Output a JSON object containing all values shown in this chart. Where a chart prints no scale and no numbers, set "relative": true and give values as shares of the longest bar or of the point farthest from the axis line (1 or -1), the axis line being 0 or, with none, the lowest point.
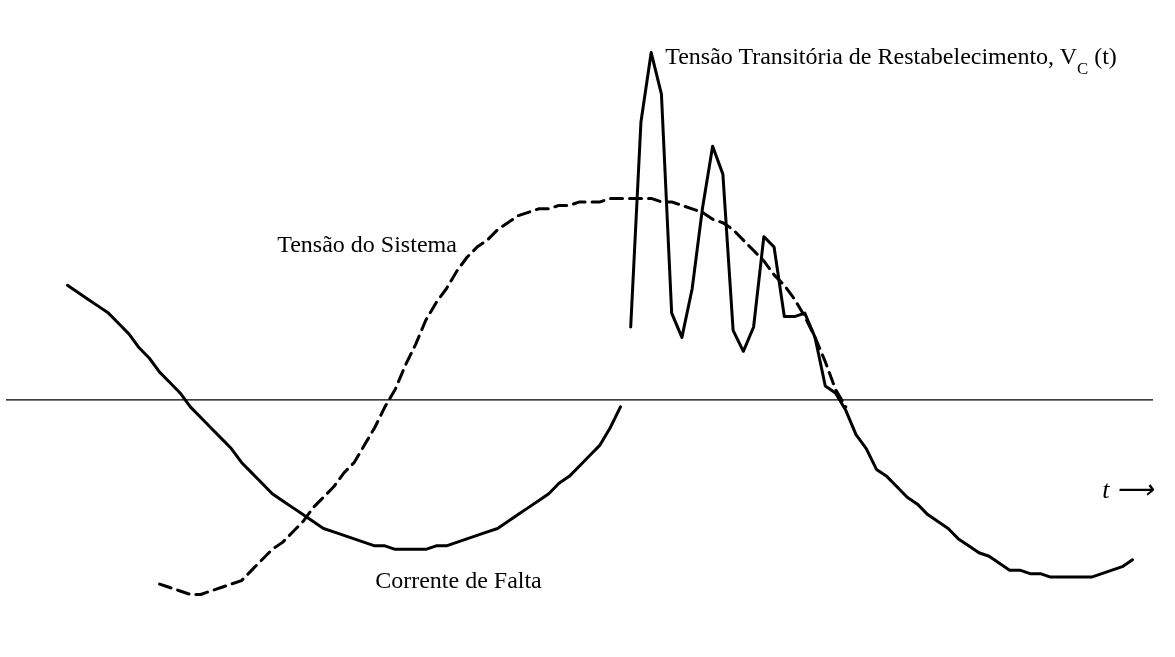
{
  "chart_data": {
    "type": "line",
    "relative": true,
    "xlabel": "t ⟶",
    "grid": false,
    "marker": "none",
    "categories": [
      null,
      null,
      null,
      null,
      null,
      null,
      null,
      null,
      null,
      null,
      null,
      null,
      null,
      null,
      null,
      null,
      null,
      null,
      null,
      null,
      null,
      null,
      null,
      null,
      null,
      null,
      null,
      null,
      null,
      null,
      null,
      null,
      null,
      null,
      null,
      null,
      null,
      null,
      null,
      null,
      null,
      null,
      null,
      null,
      null,
      null,
      null,
      null,
      null,
      null,
      null,
      null,
      null,
      null,
      null,
      null,
      null,
      null,
      null,
      null,
      null,
      null,
      null,
      null,
      null,
      null,
      null,
      null,
      null,
      null,
      null,
      null,
      null,
      null,
      null,
      null,
      null,
      null,
      null,
      null,
      null,
      null,
      null,
      null,
      null,
      null,
      null,
      null,
      null,
      null,
      null,
      null,
      null,
      null,
      null,
      null,
      null,
      null,
      null,
      null,
      null,
      null,
      null,
      null,
      null
    ],
    "series": [
      {
        "name": "Corrente de Falta",
        "color": "#000000",
        "line_style": "solid",
        "values": [
          0.33,
          0.31,
          0.29,
          0.27,
          0.25,
          0.22,
          0.19,
          0.15,
          0.12,
          0.08,
          0.05,
          0.02,
          -0.02,
          -0.05,
          -0.08,
          -0.11,
          -0.14,
          -0.18,
          -0.21,
          -0.24,
          -0.27,
          -0.29,
          -0.31,
          -0.33,
          -0.35,
          -0.37,
          -0.38,
          -0.39,
          -0.4,
          -0.41,
          -0.42,
          -0.42,
          -0.43,
          -0.43,
          -0.43,
          -0.43,
          -0.42,
          -0.42,
          -0.41,
          -0.4,
          -0.39,
          -0.38,
          -0.37,
          -0.35,
          -0.33,
          -0.31,
          -0.29,
          -0.27,
          -0.24,
          -0.22,
          -0.19,
          -0.16,
          -0.13,
          -0.08,
          -0.02,
          null,
          null,
          null,
          null,
          null,
          null,
          null,
          null,
          null,
          null,
          null,
          null,
          null,
          null,
          null,
          null,
          null,
          null,
          null,
          null,
          null,
          null,
          null,
          null,
          null,
          null,
          null,
          null,
          null,
          null,
          null,
          null,
          null,
          null,
          null,
          null,
          null,
          null,
          null,
          null,
          null,
          null,
          null,
          null,
          null,
          null,
          null,
          null,
          null,
          null
        ]
      },
      {
        "name": "Tensão do Sistema",
        "color": "#000000",
        "line_style": "dashed",
        "values": [
          null,
          null,
          null,
          null,
          null,
          null,
          null,
          null,
          null,
          -0.53,
          -0.54,
          -0.55,
          -0.56,
          -0.56,
          -0.55,
          -0.54,
          -0.53,
          -0.52,
          -0.49,
          -0.46,
          -0.43,
          -0.41,
          -0.38,
          -0.35,
          -0.31,
          -0.28,
          -0.25,
          -0.21,
          -0.18,
          -0.13,
          -0.08,
          -0.02,
          0.03,
          0.1,
          0.16,
          0.23,
          0.28,
          0.32,
          0.37,
          0.41,
          0.44,
          0.46,
          0.49,
          0.51,
          0.53,
          0.54,
          0.55,
          0.55,
          0.56,
          0.56,
          0.57,
          0.57,
          0.57,
          0.58,
          0.58,
          0.58,
          0.58,
          0.58,
          0.57,
          0.57,
          0.56,
          0.55,
          0.54,
          0.52,
          0.51,
          0.49,
          0.46,
          0.43,
          0.4,
          0.36,
          0.33,
          0.29,
          0.24,
          0.18,
          0.11,
          0.03,
          -0.02,
          null,
          null,
          null,
          null,
          null,
          null,
          null,
          null,
          null,
          null,
          null,
          null,
          null,
          null,
          null,
          null,
          null,
          null,
          null,
          null,
          null,
          null,
          null,
          null,
          null,
          null,
          null,
          null
        ]
      },
      {
        "name": "Tensão Transitória de Restabelecimento, V$_{C}$ (t)",
        "color": "#000000",
        "line_style": "solid",
        "values": [
          null,
          null,
          null,
          null,
          null,
          null,
          null,
          null,
          null,
          null,
          null,
          null,
          null,
          null,
          null,
          null,
          null,
          null,
          null,
          null,
          null,
          null,
          null,
          null,
          null,
          null,
          null,
          null,
          null,
          null,
          null,
          null,
          null,
          null,
          null,
          null,
          null,
          null,
          null,
          null,
          null,
          null,
          null,
          null,
          null,
          null,
          null,
          null,
          null,
          null,
          null,
          null,
          null,
          null,
          null,
          0.21,
          0.8,
          1,
          0.88,
          0.25,
          0.18,
          0.32,
          0.55,
          0.73,
          0.65,
          0.2,
          0.14,
          0.21,
          0.47,
          0.44,
          0.24,
          0.24,
          0.25,
          0.18,
          0.04,
          0.02,
          -0.03,
          -0.1,
          -0.14,
          -0.2,
          -0.22,
          -0.25,
          -0.28,
          -0.3,
          -0.33,
          -0.35,
          -0.37,
          -0.4,
          -0.42,
          -0.44,
          -0.45,
          -0.47,
          -0.49,
          -0.49,
          -0.5,
          -0.5,
          -0.51,
          -0.51,
          -0.51,
          -0.51,
          -0.51,
          -0.5,
          -0.49,
          -0.48,
          -0.46
        ]
      }
    ]
  }
}
